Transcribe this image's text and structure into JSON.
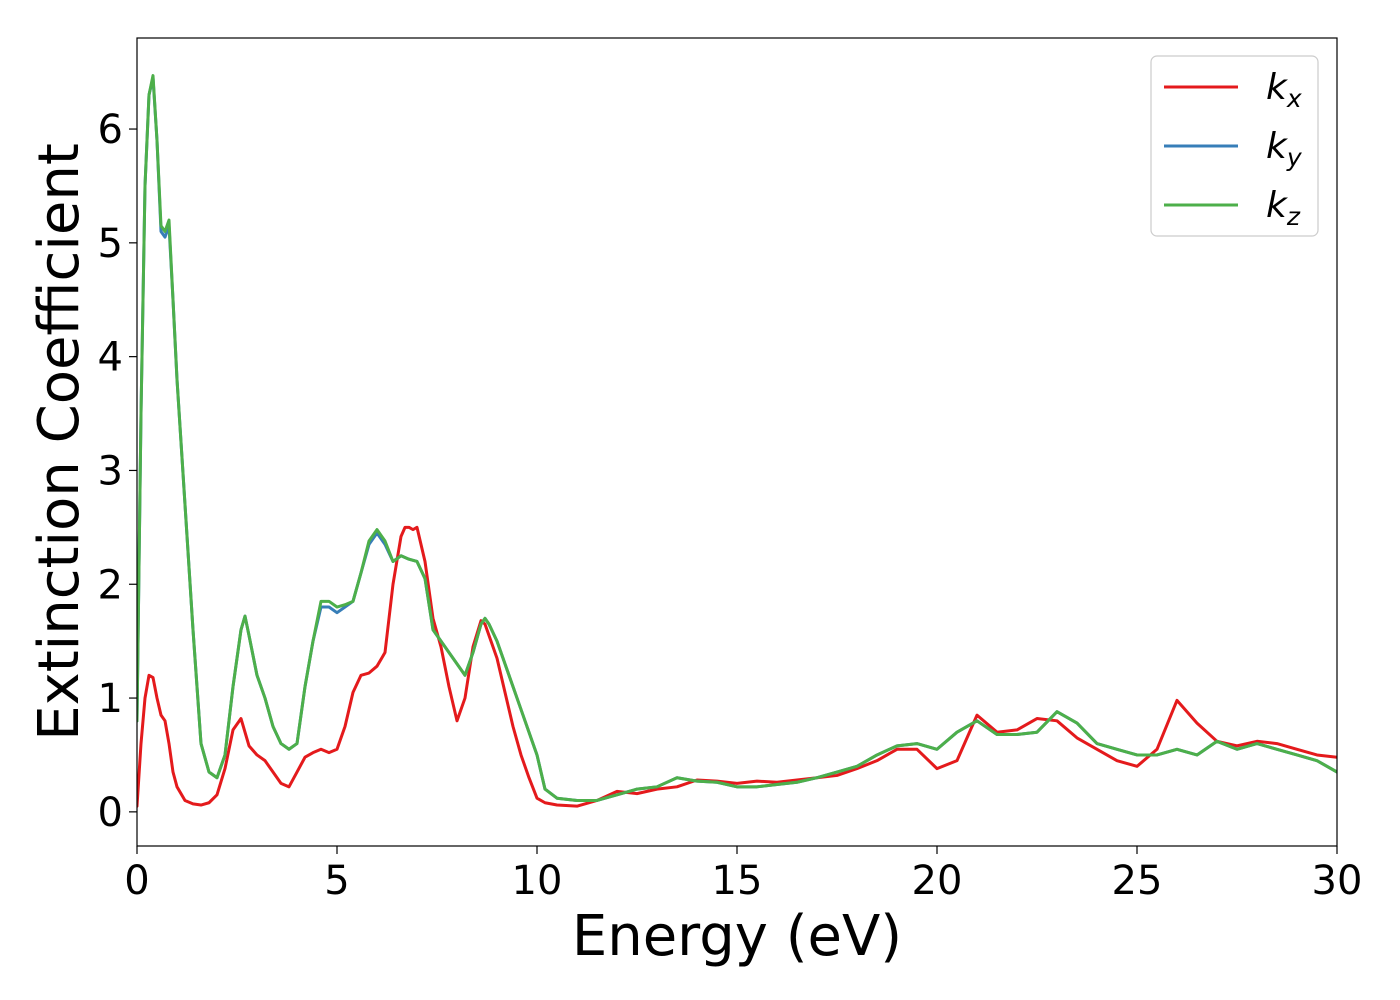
{
  "chart_data": {
    "type": "line",
    "xlabel": "Energy (eV)",
    "ylabel": "Extinction Coefficient",
    "xlim": [
      0,
      30
    ],
    "ylim": [
      -0.3,
      6.8
    ],
    "xticks": [
      0,
      5,
      10,
      15,
      20,
      25,
      30
    ],
    "yticks": [
      0,
      1,
      2,
      3,
      4,
      5,
      6
    ],
    "grid": false,
    "legend_position": "top-right",
    "series": [
      {
        "name": "kx",
        "legend_base": "k",
        "legend_sub": "x",
        "color": "#e41a1c",
        "x": [
          0,
          0.1,
          0.2,
          0.3,
          0.4,
          0.5,
          0.6,
          0.7,
          0.8,
          0.9,
          1.0,
          1.2,
          1.4,
          1.6,
          1.8,
          2.0,
          2.2,
          2.4,
          2.6,
          2.7,
          2.8,
          3.0,
          3.2,
          3.4,
          3.6,
          3.8,
          4.0,
          4.2,
          4.4,
          4.6,
          4.8,
          5.0,
          5.2,
          5.4,
          5.6,
          5.8,
          6.0,
          6.2,
          6.4,
          6.6,
          6.7,
          6.8,
          6.9,
          7.0,
          7.2,
          7.4,
          7.6,
          7.8,
          8.0,
          8.2,
          8.4,
          8.6,
          8.7,
          8.8,
          9.0,
          9.2,
          9.4,
          9.6,
          9.8,
          10.0,
          10.2,
          10.5,
          11.0,
          11.5,
          12.0,
          12.5,
          13.0,
          13.5,
          14.0,
          14.5,
          15.0,
          15.5,
          16.0,
          16.5,
          17.0,
          17.5,
          18.0,
          18.5,
          19.0,
          19.5,
          20.0,
          20.5,
          21.0,
          21.5,
          22.0,
          22.5,
          23.0,
          23.5,
          24.0,
          24.5,
          25.0,
          25.5,
          26.0,
          26.5,
          27.0,
          27.5,
          28.0,
          28.5,
          29.0,
          29.5,
          30.0
        ],
        "y": [
          0.05,
          0.6,
          1.0,
          1.2,
          1.18,
          1.0,
          0.85,
          0.8,
          0.6,
          0.35,
          0.22,
          0.1,
          0.07,
          0.06,
          0.08,
          0.15,
          0.38,
          0.72,
          0.82,
          0.7,
          0.58,
          0.5,
          0.45,
          0.35,
          0.25,
          0.22,
          0.35,
          0.48,
          0.52,
          0.55,
          0.52,
          0.55,
          0.75,
          1.05,
          1.2,
          1.22,
          1.28,
          1.4,
          2.0,
          2.42,
          2.5,
          2.5,
          2.48,
          2.5,
          2.2,
          1.7,
          1.45,
          1.1,
          0.8,
          1.0,
          1.45,
          1.68,
          1.65,
          1.55,
          1.35,
          1.05,
          0.75,
          0.5,
          0.3,
          0.12,
          0.08,
          0.06,
          0.05,
          0.1,
          0.18,
          0.16,
          0.2,
          0.22,
          0.28,
          0.27,
          0.25,
          0.27,
          0.26,
          0.28,
          0.3,
          0.32,
          0.38,
          0.45,
          0.55,
          0.55,
          0.38,
          0.45,
          0.85,
          0.7,
          0.72,
          0.82,
          0.8,
          0.65,
          0.55,
          0.45,
          0.4,
          0.55,
          0.98,
          0.78,
          0.62,
          0.58,
          0.62,
          0.6,
          0.55,
          0.5,
          0.48
        ]
      },
      {
        "name": "ky",
        "legend_base": "k",
        "legend_sub": "y",
        "color": "#377eb8",
        "x": [
          0,
          0.1,
          0.2,
          0.3,
          0.4,
          0.5,
          0.6,
          0.7,
          0.8,
          0.9,
          1.0,
          1.2,
          1.4,
          1.6,
          1.8,
          2.0,
          2.2,
          2.4,
          2.6,
          2.7,
          2.8,
          3.0,
          3.2,
          3.4,
          3.6,
          3.8,
          4.0,
          4.2,
          4.4,
          4.6,
          4.8,
          5.0,
          5.2,
          5.4,
          5.6,
          5.8,
          6.0,
          6.2,
          6.4,
          6.6,
          6.8,
          7.0,
          7.2,
          7.4,
          7.6,
          7.8,
          8.0,
          8.2,
          8.4,
          8.6,
          8.7,
          8.8,
          9.0,
          9.2,
          9.4,
          9.6,
          9.8,
          10.0,
          10.2,
          10.5,
          11.0,
          11.5,
          12.0,
          12.5,
          13.0,
          13.5,
          14.0,
          14.5,
          15.0,
          15.5,
          16.0,
          16.5,
          17.0,
          17.5,
          18.0,
          18.5,
          19.0,
          19.5,
          20.0,
          20.5,
          21.0,
          21.5,
          22.0,
          22.5,
          23.0,
          23.5,
          24.0,
          24.5,
          25.0,
          25.5,
          26.0,
          26.5,
          27.0,
          27.5,
          28.0,
          28.5,
          29.0,
          29.5,
          30.0
        ],
        "y": [
          0.8,
          3.5,
          5.5,
          6.3,
          6.45,
          5.9,
          5.1,
          5.05,
          5.15,
          4.5,
          3.8,
          2.7,
          1.6,
          0.6,
          0.35,
          0.3,
          0.5,
          1.1,
          1.6,
          1.72,
          1.55,
          1.2,
          1.0,
          0.75,
          0.6,
          0.55,
          0.6,
          1.1,
          1.5,
          1.8,
          1.8,
          1.75,
          1.8,
          1.85,
          2.1,
          2.35,
          2.45,
          2.35,
          2.2,
          2.25,
          2.22,
          2.2,
          2.05,
          1.6,
          1.5,
          1.4,
          1.3,
          1.2,
          1.4,
          1.65,
          1.7,
          1.65,
          1.5,
          1.3,
          1.1,
          0.9,
          0.7,
          0.5,
          0.2,
          0.12,
          0.1,
          0.1,
          0.15,
          0.2,
          0.22,
          0.3,
          0.27,
          0.26,
          0.22,
          0.22,
          0.24,
          0.26,
          0.3,
          0.35,
          0.4,
          0.5,
          0.58,
          0.6,
          0.55,
          0.7,
          0.8,
          0.68,
          0.68,
          0.7,
          0.88,
          0.78,
          0.6,
          0.55,
          0.5,
          0.5,
          0.55,
          0.5,
          0.62,
          0.55,
          0.6,
          0.55,
          0.5,
          0.45,
          0.35
        ]
      },
      {
        "name": "kz",
        "legend_base": "k",
        "legend_sub": "z",
        "color": "#4daf4a",
        "x": [
          0,
          0.1,
          0.2,
          0.3,
          0.4,
          0.5,
          0.6,
          0.7,
          0.8,
          0.9,
          1.0,
          1.2,
          1.4,
          1.6,
          1.8,
          2.0,
          2.2,
          2.4,
          2.6,
          2.7,
          2.8,
          3.0,
          3.2,
          3.4,
          3.6,
          3.8,
          4.0,
          4.2,
          4.4,
          4.6,
          4.8,
          5.0,
          5.2,
          5.4,
          5.6,
          5.8,
          6.0,
          6.2,
          6.4,
          6.6,
          6.8,
          7.0,
          7.2,
          7.4,
          7.6,
          7.8,
          8.0,
          8.2,
          8.4,
          8.6,
          8.7,
          8.8,
          9.0,
          9.2,
          9.4,
          9.6,
          9.8,
          10.0,
          10.2,
          10.5,
          11.0,
          11.5,
          12.0,
          12.5,
          13.0,
          13.5,
          14.0,
          14.5,
          15.0,
          15.5,
          16.0,
          16.5,
          17.0,
          17.5,
          18.0,
          18.5,
          19.0,
          19.5,
          20.0,
          20.5,
          21.0,
          21.5,
          22.0,
          22.5,
          23.0,
          23.5,
          24.0,
          24.5,
          25.0,
          25.5,
          26.0,
          26.5,
          27.0,
          27.5,
          28.0,
          28.5,
          29.0,
          29.5,
          30.0
        ],
        "y": [
          0.8,
          3.5,
          5.5,
          6.3,
          6.47,
          5.9,
          5.15,
          5.1,
          5.2,
          4.5,
          3.8,
          2.7,
          1.6,
          0.6,
          0.35,
          0.3,
          0.5,
          1.1,
          1.6,
          1.72,
          1.55,
          1.2,
          1.0,
          0.75,
          0.6,
          0.55,
          0.6,
          1.1,
          1.5,
          1.85,
          1.85,
          1.8,
          1.82,
          1.85,
          2.1,
          2.38,
          2.48,
          2.38,
          2.2,
          2.25,
          2.22,
          2.2,
          2.05,
          1.6,
          1.5,
          1.4,
          1.3,
          1.2,
          1.4,
          1.65,
          1.7,
          1.65,
          1.5,
          1.3,
          1.1,
          0.9,
          0.7,
          0.5,
          0.2,
          0.12,
          0.1,
          0.1,
          0.15,
          0.2,
          0.22,
          0.3,
          0.27,
          0.26,
          0.22,
          0.22,
          0.24,
          0.26,
          0.3,
          0.35,
          0.4,
          0.5,
          0.58,
          0.6,
          0.55,
          0.7,
          0.8,
          0.68,
          0.68,
          0.7,
          0.88,
          0.78,
          0.6,
          0.55,
          0.5,
          0.5,
          0.55,
          0.5,
          0.62,
          0.55,
          0.6,
          0.55,
          0.5,
          0.45,
          0.35
        ]
      }
    ]
  }
}
